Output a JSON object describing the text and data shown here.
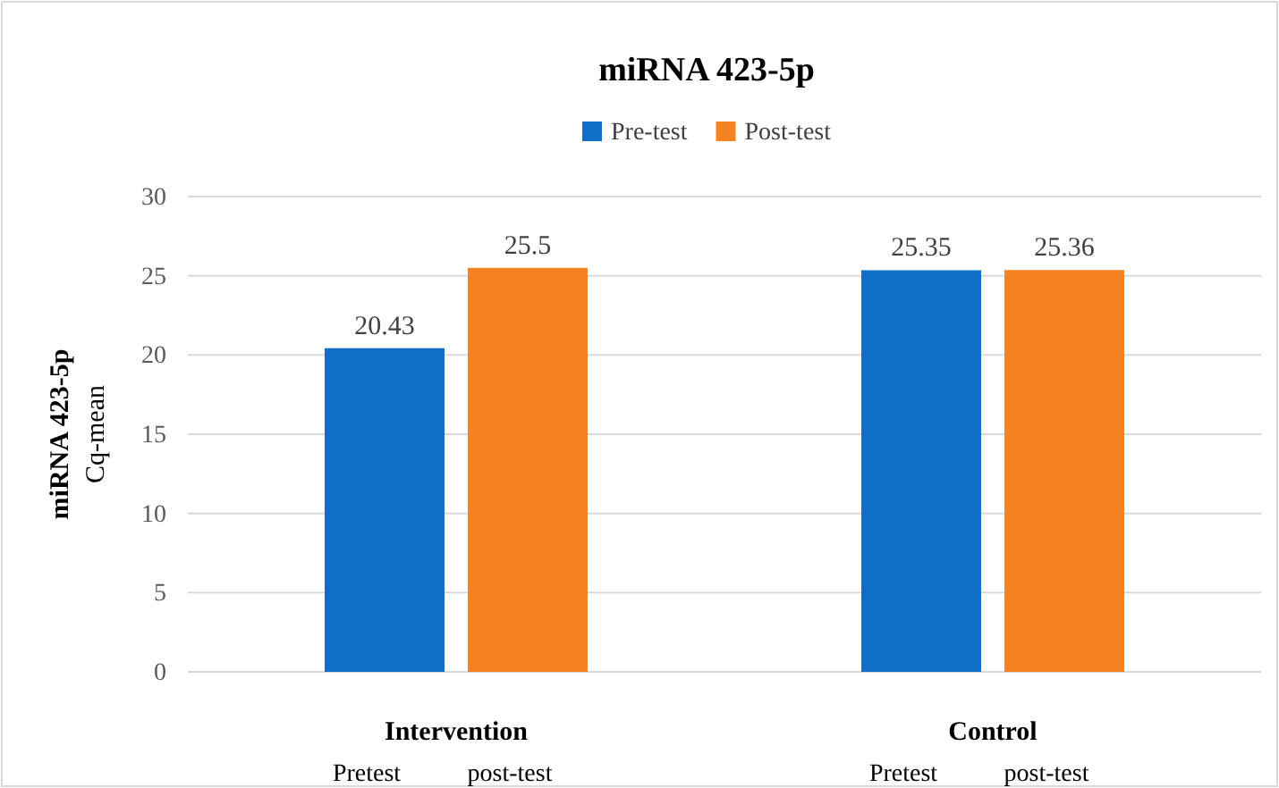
{
  "chart_data": {
    "type": "bar",
    "title": "miRNA 423-5p",
    "ylabel": "miRNA 423-5p\nCq-mean",
    "categories": [
      "Intervention",
      "Control"
    ],
    "series": [
      {
        "name": "Pre-test",
        "color": "#0f6fc6",
        "values": [
          20.43,
          25.35
        ]
      },
      {
        "name": "Post-test",
        "color": "#f58220",
        "values": [
          25.5,
          25.36
        ]
      }
    ],
    "ylim": [
      0,
      30
    ],
    "yticks": [
      0,
      5,
      10,
      15,
      20,
      25,
      30
    ],
    "grid": "y",
    "legend": "top",
    "data_labels": true,
    "annotations": [
      "Pretest",
      "post-test",
      "Pretest",
      "post-test"
    ]
  }
}
